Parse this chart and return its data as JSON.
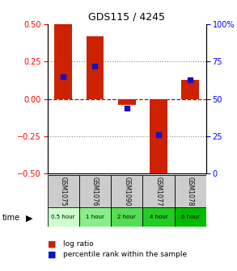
{
  "title": "GDS115 / 4245",
  "categories": [
    "GSM1075",
    "GSM1076",
    "GSM1090",
    "GSM1077",
    "GSM1078"
  ],
  "time_labels": [
    "0.5 hour",
    "1 hour",
    "2 hour",
    "4 hour",
    "6 hour"
  ],
  "log_ratios": [
    0.5,
    0.42,
    -0.04,
    -0.5,
    0.13
  ],
  "percentile_ranks": [
    0.65,
    0.72,
    0.44,
    0.26,
    0.63
  ],
  "bar_color": "#cc2200",
  "dot_color": "#1111cc",
  "ylim": [
    -0.5,
    0.5
  ],
  "yticks": [
    -0.5,
    -0.25,
    0,
    0.25,
    0.5
  ],
  "y2ticks": [
    0,
    25,
    50,
    75,
    100
  ],
  "dotted_color": "#888888",
  "hline_color": "#cc0000",
  "bar_width": 0.55,
  "cat_bg": "#cccccc",
  "time_colors": [
    "#ccffcc",
    "#88ee88",
    "#55dd55",
    "#22cc22",
    "#00bb00"
  ],
  "legend_bar_color": "#cc2200",
  "legend_dot_color": "#1111cc"
}
